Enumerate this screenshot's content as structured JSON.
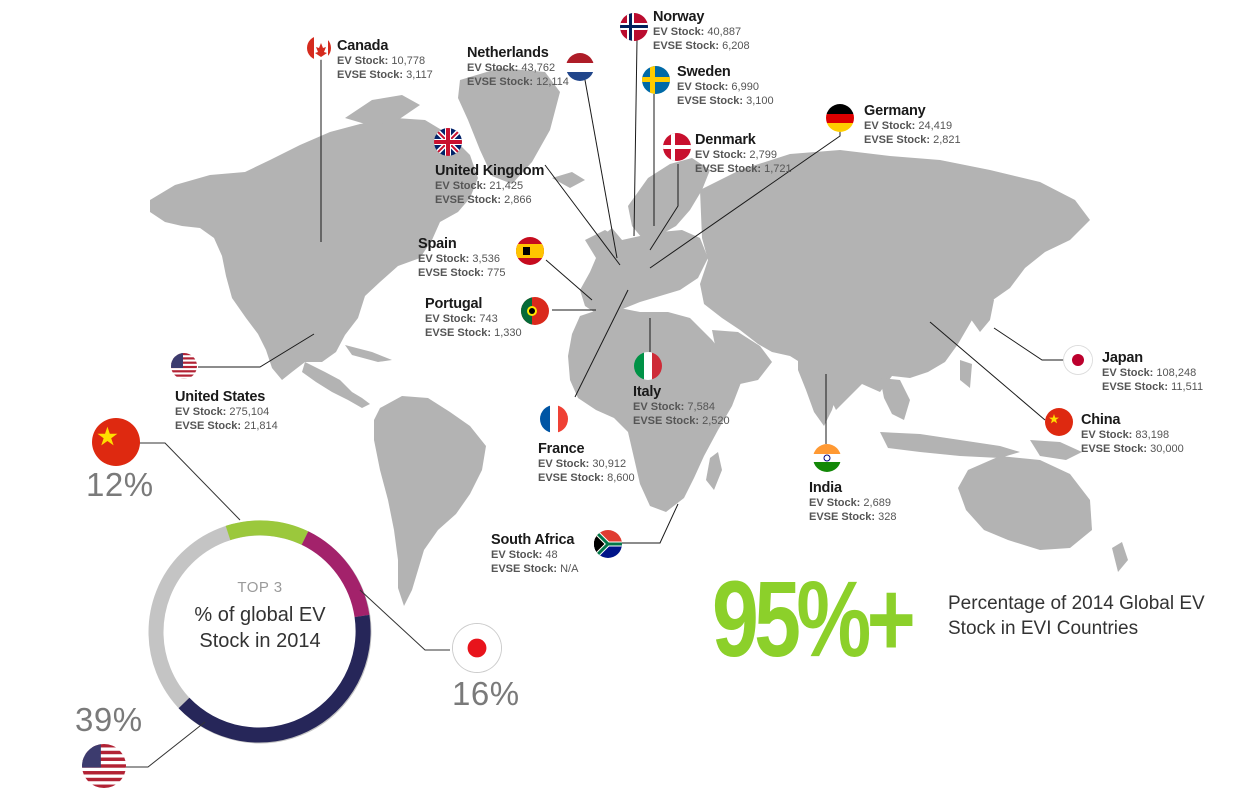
{
  "colors": {
    "land": "#b3b3b3",
    "accent_green": "#8cd02a",
    "donut_us": "#262659",
    "donut_japan": "#a3226b",
    "donut_china": "#9bc83c",
    "donut_rest": "#c4c4c4"
  },
  "countries": {
    "canada": {
      "name": "Canada",
      "ev": "10,778",
      "evse": "3,117"
    },
    "netherlands": {
      "name": "Netherlands",
      "ev": "43,762",
      "evse": "12,114"
    },
    "norway": {
      "name": "Norway",
      "ev": "40,887",
      "evse": "6,208"
    },
    "sweden": {
      "name": "Sweden",
      "ev": "6,990",
      "evse": "3,100"
    },
    "germany": {
      "name": "Germany",
      "ev": "24,419",
      "evse": "2,821"
    },
    "denmark": {
      "name": "Denmark",
      "ev": "2,799",
      "evse": "1,721"
    },
    "uk": {
      "name": "United Kingdom",
      "ev": "21,425",
      "evse": "2,866"
    },
    "spain": {
      "name": "Spain",
      "ev": "3,536",
      "evse": "775"
    },
    "portugal": {
      "name": "Portugal",
      "ev": "743",
      "evse": "1,330"
    },
    "usa": {
      "name": "United States",
      "ev": "275,104",
      "evse": "21,814"
    },
    "italy": {
      "name": "Italy",
      "ev": "7,584",
      "evse": "2,520"
    },
    "france": {
      "name": "France",
      "ev": "30,912",
      "evse": "8,600"
    },
    "japan": {
      "name": "Japan",
      "ev": "108,248",
      "evse": "11,511"
    },
    "china": {
      "name": "China",
      "ev": "83,198",
      "evse": "30,000"
    },
    "india": {
      "name": "India",
      "ev": "2,689",
      "evse": "328"
    },
    "south_africa": {
      "name": "South Africa",
      "ev": "48",
      "evse": "N/A"
    }
  },
  "labels": {
    "ev_prefix": "EV Stock:",
    "evse_prefix": "EVSE Stock:"
  },
  "donut": {
    "top3": "TOP 3",
    "caption": "% of global EV Stock in 2014",
    "china_pct": "12%",
    "japan_pct": "16%",
    "us_pct": "39%",
    "segments": [
      {
        "country": "China",
        "value": 12
      },
      {
        "country": "Japan",
        "value": 16
      },
      {
        "country": "United States",
        "value": 39
      }
    ]
  },
  "headline": {
    "value": "95%+",
    "caption": "Percentage of 2014 Global EV Stock in EVI Countries"
  }
}
